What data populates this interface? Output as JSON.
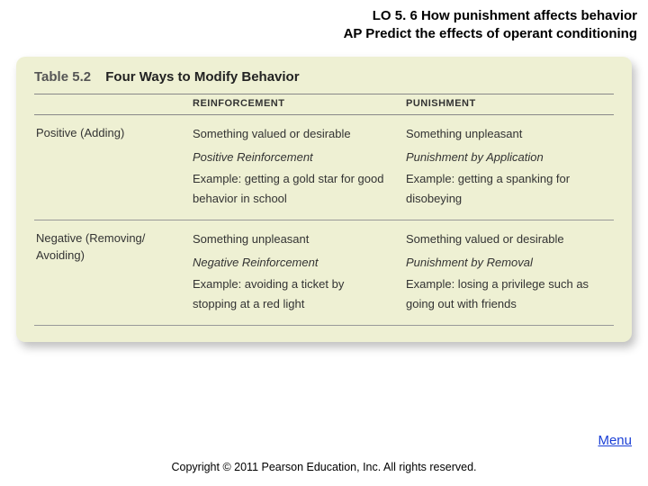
{
  "header": {
    "line1": "LO 5. 6  How punishment affects behavior",
    "line2": "AP Predict the effects of operant conditioning"
  },
  "table": {
    "number": "Table 5.2",
    "title": "Four Ways to Modify Behavior",
    "columns": {
      "blank": "",
      "c1": "REINFORCEMENT",
      "c2": "PUNISHMENT"
    },
    "rows": [
      {
        "label": "Positive (Adding)",
        "reinforcement": {
          "lead": "Something valued or desirable",
          "term": "Positive Reinforcement",
          "example": "Example: getting a gold star for good behavior in school"
        },
        "punishment": {
          "lead": "Something unpleasant",
          "term": "Punishment by Application",
          "example": "Example: getting a spanking for disobeying"
        }
      },
      {
        "label": "Negative (Removing/ Avoiding)",
        "reinforcement": {
          "lead": "Something unpleasant",
          "term": "Negative Reinforcement",
          "example": "Example: avoiding a ticket by stopping at a red light"
        },
        "punishment": {
          "lead": "Something valued or desirable",
          "term": "Punishment by Removal",
          "example": "Example: losing a privilege such as going out with friends"
        }
      }
    ]
  },
  "menu": "Menu",
  "copyright": "Copyright © 2011 Pearson Education, Inc. All rights reserved."
}
